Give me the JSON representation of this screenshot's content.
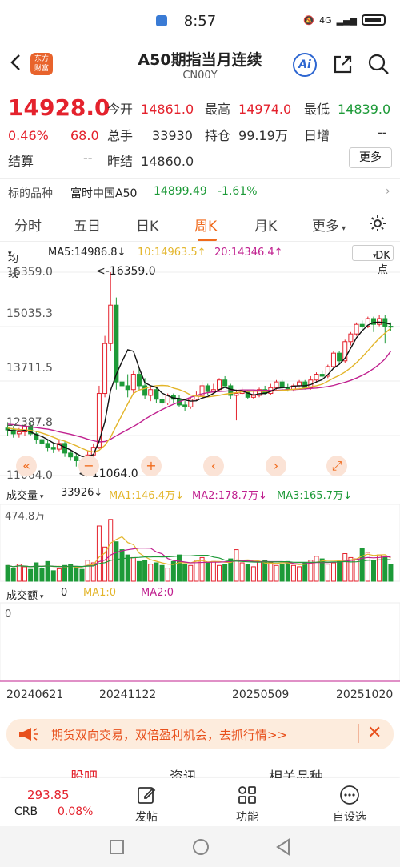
{
  "status": {
    "time": "8:57",
    "signal": "4G"
  },
  "header": {
    "title": "A50期指当月连续",
    "code": "CN00Y",
    "logo": "东方\n财富",
    "ai": "Ai"
  },
  "quote": {
    "price": "14928.0",
    "pct": "0.46%",
    "change": "68.0",
    "open_label": "今开",
    "open": "14861.0",
    "high_label": "最高",
    "high": "14974.0",
    "low_label": "最低",
    "low": "14839.0",
    "vol_label": "总手",
    "vol": "33930",
    "oi_label": "持仓",
    "oi": "99.19万",
    "daily_inc_label": "日增",
    "daily_inc": "--",
    "settle_label": "结算",
    "settle": "--",
    "prev_settle_label": "昨结",
    "prev_settle": "14860.0",
    "more": "更多"
  },
  "related": {
    "label": "标的品种",
    "name": "富时中国A50",
    "price": "14899.49",
    "pct": "-1.61%"
  },
  "tabs": [
    "分时",
    "五日",
    "日K",
    "周K",
    "月K",
    "更多"
  ],
  "ma": {
    "type": "均线",
    "ma5": "MA5:14986.8↓",
    "ma10": "10:14963.5↑",
    "ma20": "20:14346.4↑",
    "dk": "DK点"
  },
  "colors": {
    "up": "#e4222d",
    "down": "#1d9a38",
    "ma5": "#111111",
    "ma10": "#e3b52a",
    "ma20": "#c0208f",
    "accent": "#f06a1b"
  },
  "chart_data": {
    "type": "candlestick",
    "y_labels": [
      "16359.0",
      "15035.3",
      "13711.5",
      "12387.8",
      "11064.0"
    ],
    "high_note": "<-16359.0",
    "low_note": "<-11064.0",
    "ylim": [
      11064.0,
      16359.0
    ],
    "candles": [
      [
        12300,
        12250,
        12450,
        12100
      ],
      [
        12250,
        12150,
        12350,
        12050
      ],
      [
        12150,
        12200,
        12300,
        12050
      ],
      [
        12200,
        12350,
        12400,
        12100
      ],
      [
        12350,
        12150,
        12450,
        12100
      ],
      [
        12150,
        12000,
        12200,
        11900
      ],
      [
        12000,
        11900,
        12100,
        11800
      ],
      [
        11900,
        11800,
        12000,
        11700
      ],
      [
        11800,
        11750,
        11900,
        11650
      ],
      [
        11750,
        11900,
        12000,
        11700
      ],
      [
        11900,
        11650,
        11950,
        11550
      ],
      [
        11650,
        11550,
        11750,
        11450
      ],
      [
        11550,
        11450,
        11650,
        11300
      ],
      [
        11450,
        11300,
        11550,
        11064
      ],
      [
        11300,
        11600,
        11700,
        11250
      ],
      [
        11600,
        11800,
        11900,
        11500
      ],
      [
        11800,
        13200,
        13400,
        11750
      ],
      [
        13200,
        14500,
        14700,
        13100
      ],
      [
        14500,
        15500,
        16359,
        14300
      ],
      [
        15500,
        13500,
        15700,
        13300
      ],
      [
        13500,
        13400,
        13900,
        13200
      ],
      [
        13400,
        13300,
        13700,
        13100
      ],
      [
        13300,
        13700,
        13800,
        13200
      ],
      [
        13700,
        13400,
        13900,
        13300
      ],
      [
        13400,
        13150,
        13600,
        13050
      ],
      [
        13150,
        13300,
        13400,
        13000
      ],
      [
        13300,
        13050,
        13350,
        12950
      ],
      [
        13050,
        12950,
        13150,
        12850
      ],
      [
        12950,
        13150,
        13200,
        12900
      ],
      [
        13150,
        13050,
        13200,
        12950
      ],
      [
        13050,
        12900,
        13150,
        12850
      ],
      [
        12900,
        12850,
        13000,
        12750
      ],
      [
        12850,
        13050,
        13100,
        12800
      ],
      [
        13050,
        13150,
        13250,
        13000
      ],
      [
        13150,
        13400,
        13500,
        13100
      ],
      [
        13400,
        13250,
        13450,
        13150
      ],
      [
        13250,
        13300,
        13450,
        13200
      ],
      [
        13300,
        13550,
        13600,
        13250
      ],
      [
        13550,
        13400,
        13650,
        13350
      ],
      [
        13400,
        13150,
        13450,
        13050
      ],
      [
        13150,
        13200,
        13300,
        12500
      ],
      [
        13200,
        13250,
        13350,
        13150
      ],
      [
        13250,
        13100,
        13300,
        13050
      ],
      [
        13100,
        13150,
        13250,
        13050
      ],
      [
        13150,
        13300,
        13350,
        13100
      ],
      [
        13300,
        13200,
        13400,
        13150
      ],
      [
        13200,
        13350,
        13450,
        13150
      ],
      [
        13350,
        13500,
        13550,
        13300
      ],
      [
        13500,
        13350,
        13550,
        13300
      ],
      [
        13350,
        13300,
        13450,
        13250
      ],
      [
        13300,
        13400,
        13450,
        13250
      ],
      [
        13400,
        13500,
        13550,
        13350
      ],
      [
        13500,
        13350,
        13550,
        13300
      ],
      [
        13350,
        13550,
        13650,
        13300
      ],
      [
        13550,
        13700,
        13750,
        13500
      ],
      [
        13700,
        13650,
        13800,
        13550
      ],
      [
        13650,
        13900,
        13950,
        13600
      ],
      [
        13900,
        14250,
        14300,
        13850
      ],
      [
        14250,
        14050,
        14300,
        13950
      ],
      [
        14050,
        14550,
        14600,
        14000
      ],
      [
        14550,
        14750,
        14800,
        14450
      ],
      [
        14750,
        15000,
        15050,
        14700
      ],
      [
        15000,
        14950,
        15100,
        14850
      ],
      [
        14950,
        15150,
        15200,
        14900
      ],
      [
        15150,
        15000,
        15200,
        14800
      ],
      [
        15000,
        15150,
        15250,
        14950
      ],
      [
        15150,
        14950,
        15250,
        14500
      ],
      [
        14950,
        14928,
        15050,
        14839
      ]
    ],
    "ma5": [
      12250,
      12230,
      12220,
      12240,
      12200,
      12130,
      12080,
      12000,
      11910,
      11870,
      11800,
      11730,
      11640,
      11560,
      11560,
      11610,
      11960,
      12460,
      13280,
      13700,
      14030,
      14340,
      14300,
      13860,
      13480,
      13400,
      13360,
      13210,
      13140,
      13080,
      13070,
      13030,
      13000,
      13010,
      13080,
      13120,
      13200,
      13300,
      13360,
      13310,
      13280,
      13270,
      13210,
      13160,
      13190,
      13200,
      13250,
      13330,
      13350,
      13360,
      13390,
      13400,
      13400,
      13430,
      13500,
      13560,
      13690,
      13860,
      13960,
      14120,
      14380,
      14650,
      14830,
      14980,
      15050,
      15060,
      15040,
      15000
    ],
    "ma10": [
      12300,
      12280,
      12260,
      12250,
      12240,
      12210,
      12170,
      12120,
      12060,
      12000,
      11960,
      11900,
      11840,
      11770,
      11710,
      11680,
      11720,
      11850,
      12060,
      12360,
      12640,
      12930,
      13200,
      13290,
      13330,
      13380,
      13400,
      13410,
      13400,
      13340,
      13300,
      13240,
      13160,
      13130,
      13120,
      13110,
      13130,
      13150,
      13180,
      13200,
      13220,
      13240,
      13250,
      13260,
      13260,
      13250,
      13260,
      13270,
      13280,
      13290,
      13310,
      13320,
      13340,
      13370,
      13400,
      13440,
      13520,
      13600,
      13670,
      13760,
      13870,
      14000,
      14150,
      14310,
      14480,
      14640,
      14770,
      14900
    ],
    "ma20": [
      12400,
      12390,
      12370,
      12350,
      12330,
      12310,
      12290,
      12270,
      12240,
      12200,
      12170,
      12140,
      12100,
      12060,
      12010,
      11970,
      11940,
      11950,
      12010,
      12100,
      12180,
      12260,
      12340,
      12430,
      12530,
      12620,
      12700,
      12780,
      12850,
      12920,
      12980,
      13040,
      13100,
      13150,
      13190,
      13220,
      13240,
      13250,
      13260,
      13270,
      13280,
      13290,
      13290,
      13290,
      13280,
      13280,
      13280,
      13280,
      13290,
      13300,
      13300,
      13310,
      13320,
      13330,
      13340,
      13360,
      13380,
      13410,
      13450,
      13490,
      13540,
      13600,
      13670,
      13750,
      13850,
      13960,
      14100,
      14300
    ],
    "volume_label": "成交量",
    "volume_value": "33926↓",
    "vol_ma1": "MA1:146.4万↓",
    "vol_ma2": "MA2:178.7万↓",
    "vol_ma3": "MA3:165.7万↓",
    "vol_max_label": "474.8万",
    "vol_max": 474.8,
    "volumes": [
      120,
      100,
      130,
      110,
      90,
      140,
      100,
      150,
      80,
      95,
      120,
      130,
      110,
      90,
      160,
      140,
      420,
      260,
      470,
      300,
      240,
      200,
      180,
      150,
      160,
      130,
      140,
      120,
      100,
      150,
      200,
      130,
      120,
      160,
      180,
      140,
      150,
      120,
      130,
      170,
      240,
      140,
      130,
      110,
      150,
      160,
      140,
      120,
      130,
      150,
      120,
      110,
      140,
      160,
      190,
      170,
      130,
      140,
      150,
      210,
      180,
      170,
      250,
      220,
      160,
      200,
      180,
      130
    ],
    "amount_label": "成交额",
    "amount_value": "0",
    "amt_ma1": "MA1:0",
    "amt_ma2": "MA2:0",
    "amount_axis": "0",
    "x_labels": [
      "20240621",
      "20241122",
      "20250509",
      "20251020"
    ]
  },
  "banner": {
    "text": "期货双向交易，双倍盈利机会，去抓行情>>"
  },
  "subtabs": [
    "股吧",
    "资讯",
    "相关品种"
  ],
  "bottom": {
    "crb_price": "293.85",
    "crb_label": "CRB",
    "crb_pct": "0.08%",
    "post": "发帖",
    "func": "功能",
    "custom": "自设选"
  }
}
